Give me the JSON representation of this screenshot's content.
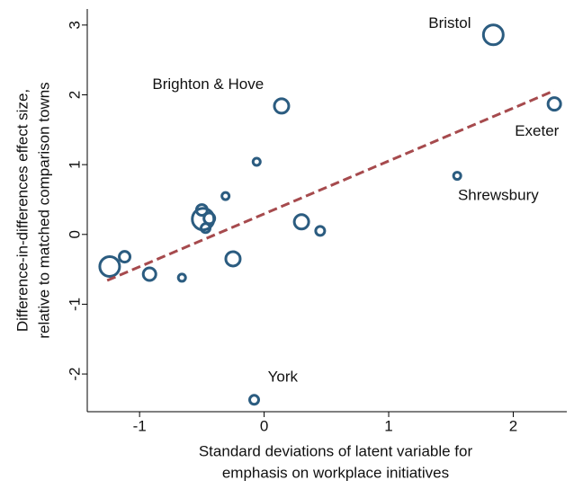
{
  "chart_data": {
    "type": "scatter",
    "xlabel": [
      "Standard deviations of latent variable for",
      "emphasis on workplace initiatives"
    ],
    "ylabel": [
      "Difference-in-differences effect size,",
      "relative to matched comparison towns"
    ],
    "x": [
      1.84,
      0.14,
      2.33,
      1.55,
      -0.06,
      -0.31,
      -0.5,
      -0.49,
      -0.44,
      -0.47,
      0.3,
      0.45,
      -1.12,
      -1.24,
      -0.92,
      -0.66,
      -0.25,
      -0.08
    ],
    "y": [
      2.86,
      1.84,
      1.87,
      0.84,
      1.04,
      0.55,
      0.35,
      0.22,
      0.23,
      0.09,
      0.18,
      0.05,
      -0.32,
      -0.46,
      -0.57,
      -0.62,
      -0.35,
      -2.37
    ],
    "sizes": [
      11,
      8,
      7,
      4,
      4,
      4,
      6,
      12,
      6,
      5,
      8,
      5,
      6,
      11,
      7,
      4,
      8,
      5
    ],
    "color": "#2b5c80",
    "fit": {
      "x": [
        -1.26,
        2.33
      ],
      "y": [
        -0.66,
        2.06
      ],
      "color": "#a64a4d"
    },
    "annotations": [
      {
        "text": "Bristol",
        "x": 1.49,
        "y": 3.02
      },
      {
        "text": "Brighton & Hove",
        "x": -0.45,
        "y": 2.14
      },
      {
        "text": "Exeter",
        "x": 2.19,
        "y": 1.47
      },
      {
        "text": "Shrewsbury",
        "x": 1.88,
        "y": 0.55
      },
      {
        "text": "York",
        "x": 0.15,
        "y": -2.05
      }
    ],
    "xlim": [
      -1.42,
      2.43
    ],
    "ylim": [
      -2.54,
      3.23
    ],
    "xticks": [
      -1,
      0,
      1,
      2
    ],
    "yticks": [
      -2,
      -1,
      0,
      1,
      2,
      3
    ]
  }
}
